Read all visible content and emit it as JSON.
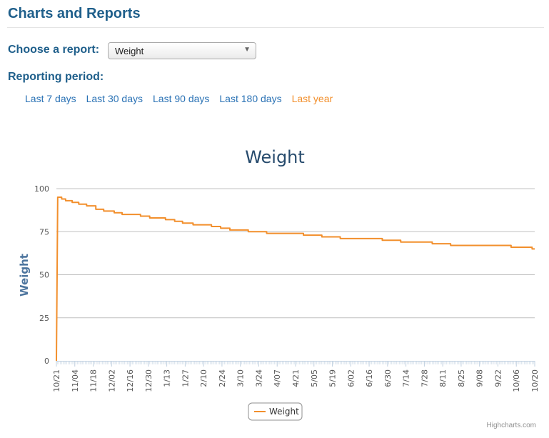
{
  "page": {
    "title": "Charts and Reports",
    "choose_report_label": "Choose a report:",
    "report_selected": "Weight",
    "reporting_period_label": "Reporting period:",
    "periods": [
      {
        "label": "Last 7 days",
        "active": false
      },
      {
        "label": "Last 30 days",
        "active": false
      },
      {
        "label": "Last 90 days",
        "active": false
      },
      {
        "label": "Last 180 days",
        "active": false
      },
      {
        "label": "Last year",
        "active": true
      }
    ],
    "credit": "Highcharts.com"
  },
  "colors": {
    "series": "#f28f2c",
    "title": "#274b6d",
    "axis_title": "#4d759e",
    "gridline": "#c0c0c0",
    "link": "#2a72b5",
    "heading": "#1f5f8b"
  },
  "icons": {
    "dropdown": "chevron-down-icon"
  },
  "chart_data": {
    "type": "line",
    "step": true,
    "title": "Weight",
    "ylabel": "Weight",
    "xlabel": "",
    "ylim": [
      0,
      100
    ],
    "yticks": [
      0,
      25,
      50,
      75,
      100
    ],
    "grid": true,
    "legend": "bottom-center",
    "x_tick_labels": [
      "10/21",
      "11/04",
      "11/18",
      "12/02",
      "12/16",
      "12/30",
      "1/13",
      "1/27",
      "2/10",
      "2/24",
      "3/10",
      "3/24",
      "4/07",
      "4/21",
      "5/05",
      "5/19",
      "6/02",
      "6/16",
      "6/30",
      "7/14",
      "7/28",
      "8/11",
      "8/25",
      "9/08",
      "9/22",
      "10/06",
      "10/20"
    ],
    "series": [
      {
        "name": "Weight",
        "points": [
          [
            "10/21",
            0
          ],
          [
            "10/22",
            95
          ],
          [
            "10/25",
            94
          ],
          [
            "10/28",
            93
          ],
          [
            "11/02",
            92
          ],
          [
            "11/07",
            91
          ],
          [
            "11/13",
            90
          ],
          [
            "11/20",
            88
          ],
          [
            "11/26",
            87
          ],
          [
            "12/04",
            86
          ],
          [
            "12/10",
            85
          ],
          [
            "12/18",
            85
          ],
          [
            "12/24",
            84
          ],
          [
            "12/31",
            83
          ],
          [
            "1/12",
            82
          ],
          [
            "1/19",
            81
          ],
          [
            "1/25",
            80
          ],
          [
            "2/02",
            79
          ],
          [
            "2/16",
            78
          ],
          [
            "2/23",
            77
          ],
          [
            "3/02",
            76
          ],
          [
            "3/16",
            75
          ],
          [
            "3/30",
            74
          ],
          [
            "4/27",
            73
          ],
          [
            "5/11",
            72
          ],
          [
            "5/25",
            71
          ],
          [
            "6/26",
            70
          ],
          [
            "7/10",
            69
          ],
          [
            "8/03",
            68
          ],
          [
            "8/17",
            67
          ],
          [
            "10/02",
            66
          ],
          [
            "10/18",
            65
          ],
          [
            "10/20",
            65
          ]
        ]
      }
    ]
  }
}
